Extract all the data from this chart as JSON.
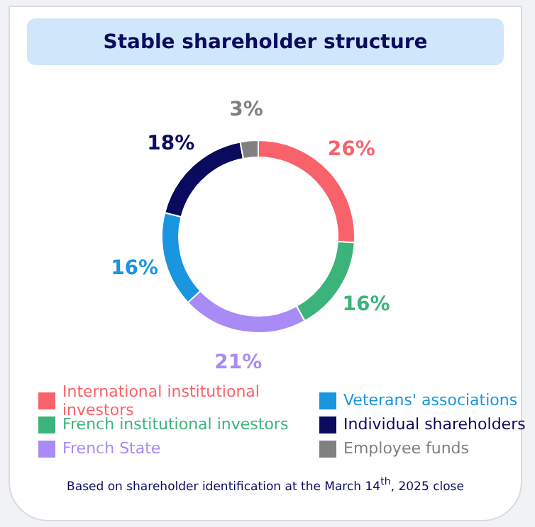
{
  "chart_data": {
    "type": "donut",
    "title": "Stable shareholder structure",
    "categories": [
      "International institutional investors",
      "French institutional investors",
      "French State",
      "Veterans' associations",
      "Individual shareholders",
      "Employee funds"
    ],
    "values": [
      26,
      16,
      21,
      16,
      18,
      3
    ],
    "colors": [
      "#f8626b",
      "#3cb37a",
      "#a98bf5",
      "#1a95e0",
      "#0a0a5e",
      "#808080"
    ],
    "value_labels": [
      "26%",
      "16%",
      "21%",
      "16%",
      "18%",
      "3%"
    ],
    "legend": "bottom",
    "annotations": [
      "Based on shareholder identification at the March 14$^{th}$, 2025 close"
    ]
  }
}
